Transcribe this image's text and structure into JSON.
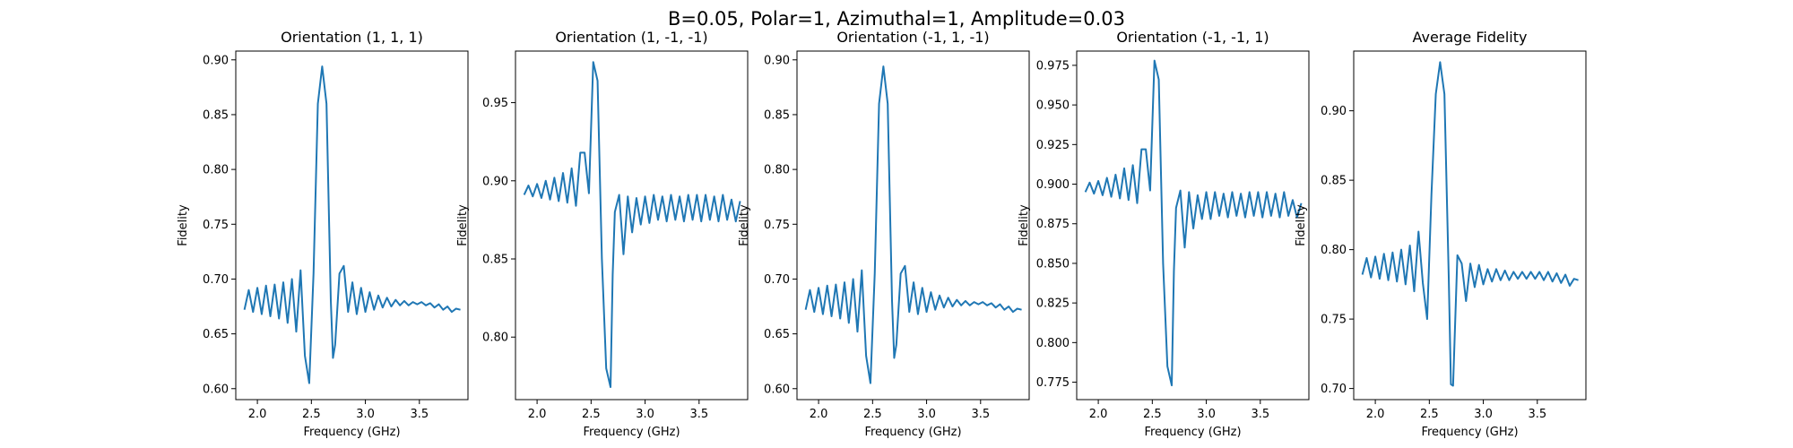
{
  "figure_title": "B=0.05, Polar=1, Azimuthal=1, Amplitude=0.03",
  "chart_data": [
    {
      "type": "line",
      "title": "Orientation (1, 1, 1)",
      "xlabel": "Frequency (GHz)",
      "ylabel": "Fidelity",
      "xlim": [
        1.8,
        3.95
      ],
      "ylim": [
        0.59,
        0.908
      ],
      "xticks": [
        2.0,
        2.5,
        3.0,
        3.5
      ],
      "yticks": [
        0.6,
        0.65,
        0.7,
        0.75,
        0.8,
        0.85,
        0.9
      ],
      "grid": false,
      "color": "#1f77b4",
      "x": [
        1.88,
        1.92,
        1.96,
        2.0,
        2.04,
        2.08,
        2.12,
        2.16,
        2.2,
        2.24,
        2.28,
        2.32,
        2.36,
        2.4,
        2.44,
        2.48,
        2.52,
        2.56,
        2.6,
        2.64,
        2.68,
        2.7,
        2.72,
        2.76,
        2.8,
        2.84,
        2.88,
        2.92,
        2.96,
        3.0,
        3.04,
        3.08,
        3.12,
        3.16,
        3.2,
        3.24,
        3.28,
        3.32,
        3.36,
        3.4,
        3.44,
        3.48,
        3.52,
        3.56,
        3.6,
        3.64,
        3.68,
        3.72,
        3.76,
        3.8,
        3.84,
        3.88
      ],
      "y": [
        0.672,
        0.69,
        0.67,
        0.692,
        0.668,
        0.694,
        0.666,
        0.695,
        0.664,
        0.697,
        0.66,
        0.7,
        0.652,
        0.708,
        0.63,
        0.605,
        0.705,
        0.86,
        0.894,
        0.86,
        0.68,
        0.628,
        0.64,
        0.705,
        0.712,
        0.67,
        0.697,
        0.668,
        0.692,
        0.67,
        0.688,
        0.672,
        0.685,
        0.674,
        0.683,
        0.675,
        0.681,
        0.676,
        0.68,
        0.676,
        0.679,
        0.677,
        0.679,
        0.676,
        0.678,
        0.674,
        0.677,
        0.672,
        0.675,
        0.67,
        0.673,
        0.672
      ]
    },
    {
      "type": "line",
      "title": "Orientation (1, -1, -1)",
      "xlabel": "Frequency (GHz)",
      "ylabel": "Fidelity",
      "xlim": [
        1.8,
        3.95
      ],
      "ylim": [
        0.76,
        0.983
      ],
      "xticks": [
        2.0,
        2.5,
        3.0,
        3.5
      ],
      "yticks": [
        0.8,
        0.85,
        0.9,
        0.95
      ],
      "grid": false,
      "color": "#1f77b4",
      "x": [
        1.88,
        1.92,
        1.96,
        2.0,
        2.04,
        2.08,
        2.12,
        2.16,
        2.2,
        2.24,
        2.28,
        2.32,
        2.36,
        2.4,
        2.44,
        2.48,
        2.52,
        2.56,
        2.6,
        2.64,
        2.68,
        2.7,
        2.72,
        2.76,
        2.8,
        2.84,
        2.88,
        2.92,
        2.96,
        3.0,
        3.04,
        3.08,
        3.12,
        3.16,
        3.2,
        3.24,
        3.28,
        3.32,
        3.36,
        3.4,
        3.44,
        3.48,
        3.52,
        3.56,
        3.6,
        3.64,
        3.68,
        3.72,
        3.76,
        3.8,
        3.84,
        3.88
      ],
      "y": [
        0.891,
        0.897,
        0.89,
        0.898,
        0.889,
        0.9,
        0.888,
        0.902,
        0.887,
        0.905,
        0.886,
        0.908,
        0.884,
        0.918,
        0.918,
        0.892,
        0.976,
        0.964,
        0.85,
        0.78,
        0.768,
        0.84,
        0.88,
        0.891,
        0.853,
        0.89,
        0.867,
        0.889,
        0.872,
        0.89,
        0.873,
        0.891,
        0.875,
        0.89,
        0.874,
        0.891,
        0.875,
        0.89,
        0.874,
        0.891,
        0.875,
        0.891,
        0.874,
        0.891,
        0.875,
        0.89,
        0.874,
        0.891,
        0.875,
        0.888,
        0.874,
        0.887
      ]
    },
    {
      "type": "line",
      "title": "Orientation (-1, 1, -1)",
      "xlabel": "Frequency (GHz)",
      "ylabel": "Fidelity",
      "xlim": [
        1.8,
        3.95
      ],
      "ylim": [
        0.59,
        0.908
      ],
      "xticks": [
        2.0,
        2.5,
        3.0,
        3.5
      ],
      "yticks": [
        0.6,
        0.65,
        0.7,
        0.75,
        0.8,
        0.85,
        0.9
      ],
      "grid": false,
      "color": "#1f77b4",
      "x": [
        1.88,
        1.92,
        1.96,
        2.0,
        2.04,
        2.08,
        2.12,
        2.16,
        2.2,
        2.24,
        2.28,
        2.32,
        2.36,
        2.4,
        2.44,
        2.48,
        2.52,
        2.56,
        2.6,
        2.64,
        2.68,
        2.7,
        2.72,
        2.76,
        2.8,
        2.84,
        2.88,
        2.92,
        2.96,
        3.0,
        3.04,
        3.08,
        3.12,
        3.16,
        3.2,
        3.24,
        3.28,
        3.32,
        3.36,
        3.4,
        3.44,
        3.48,
        3.52,
        3.56,
        3.6,
        3.64,
        3.68,
        3.72,
        3.76,
        3.8,
        3.84,
        3.88
      ],
      "y": [
        0.672,
        0.69,
        0.67,
        0.692,
        0.668,
        0.694,
        0.666,
        0.695,
        0.664,
        0.697,
        0.66,
        0.7,
        0.652,
        0.708,
        0.63,
        0.605,
        0.705,
        0.86,
        0.894,
        0.86,
        0.68,
        0.628,
        0.64,
        0.705,
        0.712,
        0.67,
        0.697,
        0.668,
        0.692,
        0.67,
        0.688,
        0.672,
        0.685,
        0.674,
        0.683,
        0.675,
        0.681,
        0.676,
        0.68,
        0.676,
        0.679,
        0.677,
        0.679,
        0.676,
        0.678,
        0.674,
        0.677,
        0.672,
        0.675,
        0.67,
        0.673,
        0.672
      ]
    },
    {
      "type": "line",
      "title": "Orientation (-1, -1, 1)",
      "xlabel": "Frequency (GHz)",
      "ylabel": "Fidelity",
      "xlim": [
        1.8,
        3.95
      ],
      "ylim": [
        0.764,
        0.984
      ],
      "xticks": [
        2.0,
        2.5,
        3.0,
        3.5
      ],
      "yticks": [
        0.775,
        0.8,
        0.825,
        0.85,
        0.875,
        0.9,
        0.925,
        0.95,
        0.975
      ],
      "grid": false,
      "color": "#1f77b4",
      "x": [
        1.88,
        1.92,
        1.96,
        2.0,
        2.04,
        2.08,
        2.12,
        2.16,
        2.2,
        2.24,
        2.28,
        2.32,
        2.36,
        2.4,
        2.44,
        2.48,
        2.52,
        2.56,
        2.6,
        2.64,
        2.68,
        2.7,
        2.72,
        2.76,
        2.8,
        2.84,
        2.88,
        2.92,
        2.96,
        3.0,
        3.04,
        3.08,
        3.12,
        3.16,
        3.2,
        3.24,
        3.28,
        3.32,
        3.36,
        3.4,
        3.44,
        3.48,
        3.52,
        3.56,
        3.6,
        3.64,
        3.68,
        3.72,
        3.76,
        3.8,
        3.84,
        3.88
      ],
      "y": [
        0.895,
        0.901,
        0.894,
        0.902,
        0.893,
        0.904,
        0.892,
        0.906,
        0.891,
        0.91,
        0.89,
        0.912,
        0.888,
        0.922,
        0.922,
        0.896,
        0.978,
        0.966,
        0.85,
        0.785,
        0.773,
        0.845,
        0.885,
        0.896,
        0.86,
        0.895,
        0.872,
        0.893,
        0.878,
        0.895,
        0.878,
        0.895,
        0.88,
        0.894,
        0.879,
        0.895,
        0.88,
        0.894,
        0.879,
        0.895,
        0.88,
        0.895,
        0.879,
        0.895,
        0.88,
        0.894,
        0.879,
        0.895,
        0.88,
        0.89,
        0.879,
        0.888
      ]
    },
    {
      "type": "line",
      "title": "Average Fidelity",
      "xlabel": "Frequency (GHz)",
      "ylabel": "Fidelity",
      "xlim": [
        1.8,
        3.95
      ],
      "ylim": [
        0.692,
        0.943
      ],
      "xticks": [
        2.0,
        2.5,
        3.0,
        3.5
      ],
      "yticks": [
        0.7,
        0.75,
        0.8,
        0.85,
        0.9
      ],
      "grid": false,
      "color": "#1f77b4",
      "x": [
        1.88,
        1.92,
        1.96,
        2.0,
        2.04,
        2.08,
        2.12,
        2.16,
        2.2,
        2.24,
        2.28,
        2.32,
        2.36,
        2.4,
        2.44,
        2.48,
        2.52,
        2.56,
        2.6,
        2.64,
        2.68,
        2.7,
        2.72,
        2.76,
        2.8,
        2.84,
        2.88,
        2.92,
        2.96,
        3.0,
        3.04,
        3.08,
        3.12,
        3.16,
        3.2,
        3.24,
        3.28,
        3.32,
        3.36,
        3.4,
        3.44,
        3.48,
        3.52,
        3.56,
        3.6,
        3.64,
        3.68,
        3.72,
        3.76,
        3.8,
        3.84,
        3.88
      ],
      "y": [
        0.782,
        0.794,
        0.78,
        0.795,
        0.779,
        0.797,
        0.778,
        0.798,
        0.777,
        0.8,
        0.775,
        0.803,
        0.77,
        0.813,
        0.776,
        0.75,
        0.84,
        0.912,
        0.935,
        0.912,
        0.78,
        0.703,
        0.702,
        0.796,
        0.79,
        0.763,
        0.79,
        0.773,
        0.789,
        0.775,
        0.786,
        0.777,
        0.786,
        0.778,
        0.785,
        0.778,
        0.784,
        0.779,
        0.784,
        0.779,
        0.784,
        0.779,
        0.784,
        0.778,
        0.784,
        0.777,
        0.783,
        0.776,
        0.782,
        0.774,
        0.779,
        0.778
      ]
    }
  ]
}
